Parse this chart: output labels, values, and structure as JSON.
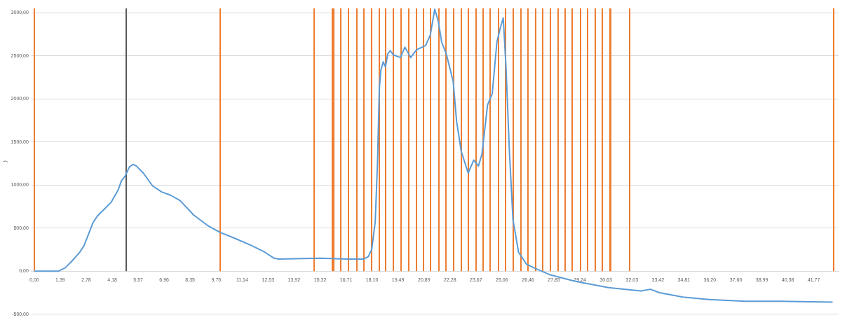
{
  "chart_data": {
    "type": "line",
    "ylabel": ")",
    "x": [
      0,
      1.29,
      1.66,
      2.03,
      2.4,
      2.65,
      2.89,
      3.14,
      3.38,
      3.75,
      4.12,
      4.49,
      4.67,
      4.86,
      5.1,
      5.29,
      5.47,
      5.84,
      6.34,
      6.83,
      7.32,
      7.81,
      8.55,
      9.29,
      9.96,
      10.76,
      11.62,
      12.36,
      12.85,
      13.1,
      15.31,
      16.79,
      17.65,
      17.9,
      18.08,
      18.27,
      18.39,
      18.49,
      18.57,
      18.7,
      18.82,
      18.94,
      19.07,
      19.25,
      19.62,
      19.86,
      20.17,
      20.48,
      20.97,
      21.22,
      21.46,
      21.65,
      21.83,
      22.08,
      22.45,
      22.63,
      22.88,
      23.25,
      23.55,
      23.8,
      23.99,
      24.29,
      24.54,
      24.79,
      24.97,
      25.13,
      25.28,
      25.46,
      25.65,
      25.95,
      26.38,
      26.87,
      27.61,
      28.84,
      29.28,
      30.77,
      32.51,
      33.01,
      33.51,
      34.75,
      36.25,
      38.11,
      39.98,
      42.78
    ],
    "series": [
      {
        "color": "#5b9bd5",
        "values": [
          0,
          0,
          40,
          120,
          210,
          290,
          420,
          560,
          640,
          720,
          800,
          940,
          1050,
          1100,
          1210,
          1240,
          1220,
          1140,
          990,
          920,
          880,
          820,
          650,
          530,
          450,
          380,
          300,
          220,
          150,
          140,
          150,
          140,
          140,
          170,
          250,
          570,
          1250,
          2120,
          2330,
          2430,
          2370,
          2520,
          2560,
          2510,
          2480,
          2600,
          2480,
          2570,
          2620,
          2740,
          3040,
          2900,
          2660,
          2520,
          2200,
          1740,
          1390,
          1140,
          1290,
          1220,
          1360,
          1930,
          2060,
          2660,
          2820,
          2940,
          2360,
          1390,
          600,
          220,
          80,
          30,
          -40,
          -110,
          -130,
          -190,
          -230,
          -210,
          -250,
          -300,
          -330,
          -350,
          -350,
          -360
        ]
      }
    ],
    "xlim": [
      -0.15,
      43.1
    ],
    "xticks": [
      {
        "value": 0,
        "label": "0,00"
      },
      {
        "value": 1.39,
        "label": "1,39"
      },
      {
        "value": 2.78,
        "label": "2,78"
      },
      {
        "value": 4.18,
        "label": "4,18"
      },
      {
        "value": 5.57,
        "label": "5,57"
      },
      {
        "value": 6.96,
        "label": "6,96"
      },
      {
        "value": 8.35,
        "label": "8,35"
      },
      {
        "value": 9.75,
        "label": "9,75"
      },
      {
        "value": 11.14,
        "label": "11,14"
      },
      {
        "value": 12.53,
        "label": "12,53"
      },
      {
        "value": 13.92,
        "label": "13,92"
      },
      {
        "value": 15.32,
        "label": "15,32"
      },
      {
        "value": 16.71,
        "label": "16,71"
      },
      {
        "value": 18.1,
        "label": "18,10"
      },
      {
        "value": 19.49,
        "label": "19,49"
      },
      {
        "value": 20.89,
        "label": "20,89"
      },
      {
        "value": 22.28,
        "label": "22,28"
      },
      {
        "value": 23.67,
        "label": "23,67"
      },
      {
        "value": 25.06,
        "label": "25,06"
      },
      {
        "value": 26.46,
        "label": "26,46"
      },
      {
        "value": 27.85,
        "label": "27,85"
      },
      {
        "value": 29.24,
        "label": "29,24"
      },
      {
        "value": 30.63,
        "label": "30,63"
      },
      {
        "value": 32.03,
        "label": "32,03"
      },
      {
        "value": 33.42,
        "label": "33,42"
      },
      {
        "value": 34.81,
        "label": "34,81"
      },
      {
        "value": 36.2,
        "label": "36,20"
      },
      {
        "value": 37.6,
        "label": "37,60"
      },
      {
        "value": 38.99,
        "label": "38,99"
      },
      {
        "value": 40.38,
        "label": "40,38"
      },
      {
        "value": 41.77,
        "label": "41,77"
      }
    ],
    "ylim": [
      -500,
      3050
    ],
    "yticks": [
      {
        "value": -500,
        "label": "-500,00"
      },
      {
        "value": 0,
        "label": "0,00"
      },
      {
        "value": 500,
        "label": "500,00"
      },
      {
        "value": 1000,
        "label": "1000,00"
      },
      {
        "value": 1500,
        "label": "1500,00"
      },
      {
        "value": 2000,
        "label": "2000,00"
      },
      {
        "value": 2500,
        "label": "2500,00"
      },
      {
        "value": 3000,
        "label": "3000,00"
      }
    ],
    "grid": "y",
    "legend": false,
    "marker": "none",
    "line_style": "solid",
    "ref_lines": [
      {
        "axis": "x",
        "value": 0,
        "color": "#ed7d31"
      },
      {
        "axis": "x",
        "value": 4.94,
        "color": "#595959"
      },
      {
        "axis": "x",
        "value": 9.96,
        "color": "#ed7d31"
      },
      {
        "axis": "x",
        "value": 14.99,
        "color": "#ed7d31"
      },
      {
        "axis": "x",
        "value": 15.99,
        "color": "#ed7d31"
      },
      {
        "axis": "x",
        "value": 16.05,
        "color": "#ed7d31"
      },
      {
        "axis": "x",
        "value": 16.43,
        "color": "#ed7d31"
      },
      {
        "axis": "x",
        "value": 16.84,
        "color": "#ed7d31"
      },
      {
        "axis": "x",
        "value": 17.27,
        "color": "#ed7d31"
      },
      {
        "axis": "x",
        "value": 17.68,
        "color": "#ed7d31"
      },
      {
        "axis": "x",
        "value": 18.07,
        "color": "#ed7d31"
      },
      {
        "axis": "x",
        "value": 18.48,
        "color": "#ed7d31"
      },
      {
        "axis": "x",
        "value": 18.84,
        "color": "#ed7d31"
      },
      {
        "axis": "x",
        "value": 19.26,
        "color": "#ed7d31"
      },
      {
        "axis": "x",
        "value": 19.66,
        "color": "#ed7d31"
      },
      {
        "axis": "x",
        "value": 20.06,
        "color": "#ed7d31"
      },
      {
        "axis": "x",
        "value": 20.47,
        "color": "#ed7d31"
      },
      {
        "axis": "x",
        "value": 20.87,
        "color": "#ed7d31"
      },
      {
        "axis": "x",
        "value": 21.25,
        "color": "#ed7d31"
      },
      {
        "axis": "x",
        "value": 21.67,
        "color": "#ed7d31"
      },
      {
        "axis": "x",
        "value": 22.06,
        "color": "#ed7d31"
      },
      {
        "axis": "x",
        "value": 22.46,
        "color": "#ed7d31"
      },
      {
        "axis": "x",
        "value": 22.89,
        "color": "#ed7d31"
      },
      {
        "axis": "x",
        "value": 23.25,
        "color": "#ed7d31"
      },
      {
        "axis": "x",
        "value": 23.66,
        "color": "#ed7d31"
      },
      {
        "axis": "x",
        "value": 24.05,
        "color": "#ed7d31"
      },
      {
        "axis": "x",
        "value": 24.44,
        "color": "#ed7d31"
      },
      {
        "axis": "x",
        "value": 24.86,
        "color": "#ed7d31"
      },
      {
        "axis": "x",
        "value": 25.25,
        "color": "#ed7d31"
      },
      {
        "axis": "x",
        "value": 25.66,
        "color": "#ed7d31"
      },
      {
        "axis": "x",
        "value": 26.08,
        "color": "#ed7d31"
      },
      {
        "axis": "x",
        "value": 26.45,
        "color": "#ed7d31"
      },
      {
        "axis": "x",
        "value": 26.86,
        "color": "#ed7d31"
      },
      {
        "axis": "x",
        "value": 27.24,
        "color": "#ed7d31"
      },
      {
        "axis": "x",
        "value": 27.65,
        "color": "#ed7d31"
      },
      {
        "axis": "x",
        "value": 28.08,
        "color": "#ed7d31"
      },
      {
        "axis": "x",
        "value": 28.45,
        "color": "#ed7d31"
      },
      {
        "axis": "x",
        "value": 28.84,
        "color": "#ed7d31"
      },
      {
        "axis": "x",
        "value": 29.27,
        "color": "#ed7d31"
      },
      {
        "axis": "x",
        "value": 29.66,
        "color": "#ed7d31"
      },
      {
        "axis": "x",
        "value": 30.05,
        "color": "#ed7d31"
      },
      {
        "axis": "x",
        "value": 30.44,
        "color": "#ed7d31"
      },
      {
        "axis": "x",
        "value": 30.84,
        "color": "#ed7d31"
      },
      {
        "axis": "x",
        "value": 30.9,
        "color": "#ed7d31"
      },
      {
        "axis": "x",
        "value": 31.92,
        "color": "#ed7d31"
      },
      {
        "axis": "x",
        "value": 42.84,
        "color": "#ed7d31"
      }
    ]
  }
}
